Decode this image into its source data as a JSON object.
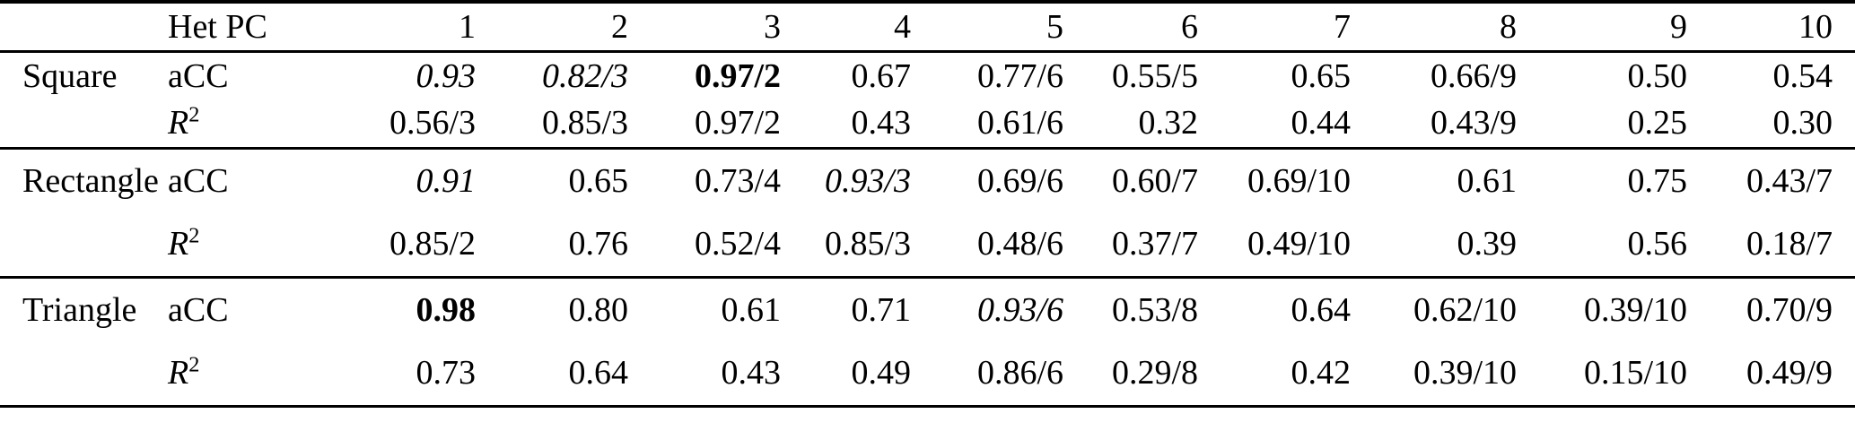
{
  "colors": {
    "background": "#ffffff",
    "text": "#000000",
    "rule": "#000000"
  },
  "table": {
    "header": {
      "group_label": "",
      "metric_label": "Het PC",
      "pc_columns": [
        "1",
        "2",
        "3",
        "4",
        "5",
        "6",
        "7",
        "8",
        "9",
        "10"
      ]
    },
    "groups": [
      {
        "name": "Square",
        "rows": [
          {
            "metric_base": "aCC",
            "metric_sup": "",
            "cells": [
              {
                "text": "0.93",
                "style": "italic"
              },
              {
                "text": "0.82/3",
                "style": "italic"
              },
              {
                "text": "0.97/2",
                "style": "bold"
              },
              {
                "text": "0.67",
                "style": "normal"
              },
              {
                "text": "0.77/6",
                "style": "normal"
              },
              {
                "text": "0.55/5",
                "style": "normal"
              },
              {
                "text": "0.65",
                "style": "normal"
              },
              {
                "text": "0.66/9",
                "style": "normal"
              },
              {
                "text": "0.50",
                "style": "normal"
              },
              {
                "text": "0.54",
                "style": "normal"
              }
            ]
          },
          {
            "metric_base": "R",
            "metric_sup": "2",
            "cells": [
              {
                "text": "0.56/3",
                "style": "normal"
              },
              {
                "text": "0.85/3",
                "style": "normal"
              },
              {
                "text": "0.97/2",
                "style": "normal"
              },
              {
                "text": "0.43",
                "style": "normal"
              },
              {
                "text": "0.61/6",
                "style": "normal"
              },
              {
                "text": "0.32",
                "style": "normal"
              },
              {
                "text": "0.44",
                "style": "normal"
              },
              {
                "text": "0.43/9",
                "style": "normal"
              },
              {
                "text": "0.25",
                "style": "normal"
              },
              {
                "text": "0.30",
                "style": "normal"
              }
            ]
          }
        ]
      },
      {
        "name": "Rectangle",
        "rows": [
          {
            "metric_base": "aCC",
            "metric_sup": "",
            "cells": [
              {
                "text": "0.91",
                "style": "italic"
              },
              {
                "text": "0.65",
                "style": "normal"
              },
              {
                "text": "0.73/4",
                "style": "normal"
              },
              {
                "text": "0.93/3",
                "style": "italic"
              },
              {
                "text": "0.69/6",
                "style": "normal"
              },
              {
                "text": "0.60/7",
                "style": "normal"
              },
              {
                "text": "0.69/10",
                "style": "normal"
              },
              {
                "text": "0.61",
                "style": "normal"
              },
              {
                "text": "0.75",
                "style": "normal"
              },
              {
                "text": "0.43/7",
                "style": "normal"
              }
            ]
          },
          {
            "metric_base": "R",
            "metric_sup": "2",
            "cells": [
              {
                "text": "0.85/2",
                "style": "normal"
              },
              {
                "text": "0.76",
                "style": "normal"
              },
              {
                "text": "0.52/4",
                "style": "normal"
              },
              {
                "text": "0.85/3",
                "style": "normal"
              },
              {
                "text": "0.48/6",
                "style": "normal"
              },
              {
                "text": "0.37/7",
                "style": "normal"
              },
              {
                "text": "0.49/10",
                "style": "normal"
              },
              {
                "text": "0.39",
                "style": "normal"
              },
              {
                "text": "0.56",
                "style": "normal"
              },
              {
                "text": "0.18/7",
                "style": "normal"
              }
            ]
          }
        ]
      },
      {
        "name": "Triangle",
        "rows": [
          {
            "metric_base": "aCC",
            "metric_sup": "",
            "cells": [
              {
                "text": "0.98",
                "style": "bold"
              },
              {
                "text": "0.80",
                "style": "normal"
              },
              {
                "text": "0.61",
                "style": "normal"
              },
              {
                "text": "0.71",
                "style": "normal"
              },
              {
                "text": "0.93/6",
                "style": "italic"
              },
              {
                "text": "0.53/8",
                "style": "normal"
              },
              {
                "text": "0.64",
                "style": "normal"
              },
              {
                "text": "0.62/10",
                "style": "normal"
              },
              {
                "text": "0.39/10",
                "style": "normal"
              },
              {
                "text": "0.70/9",
                "style": "normal"
              }
            ]
          },
          {
            "metric_base": "R",
            "metric_sup": "2",
            "cells": [
              {
                "text": "0.73",
                "style": "normal"
              },
              {
                "text": "0.64",
                "style": "normal"
              },
              {
                "text": "0.43",
                "style": "normal"
              },
              {
                "text": "0.49",
                "style": "normal"
              },
              {
                "text": "0.86/6",
                "style": "normal"
              },
              {
                "text": "0.29/8",
                "style": "normal"
              },
              {
                "text": "0.42",
                "style": "normal"
              },
              {
                "text": "0.39/10",
                "style": "normal"
              },
              {
                "text": "0.15/10",
                "style": "normal"
              },
              {
                "text": "0.49/9",
                "style": "normal"
              }
            ]
          }
        ]
      }
    ]
  }
}
